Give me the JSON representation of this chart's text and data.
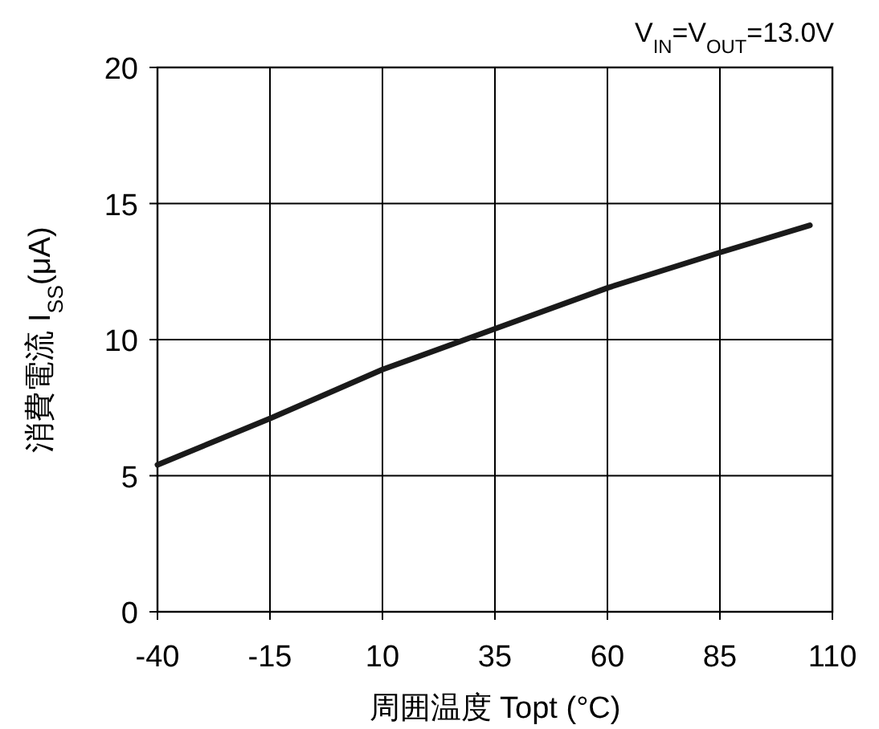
{
  "chart_data": {
    "type": "line",
    "xlabel": "周囲温度 Topt (°C)",
    "ylabel": "消費電流 I$_{SS}$(μA)",
    "annotations": [
      "V$_{IN}$=V$_{OUT}$=13.0V"
    ],
    "x": [
      -40,
      -15,
      10,
      35,
      60,
      85,
      105
    ],
    "series": [
      {
        "color": "#1a1a1a",
        "values": [
          5.4,
          7.1,
          8.9,
          10.4,
          11.9,
          13.2,
          14.2
        ]
      }
    ],
    "xlim": [
      -40,
      110
    ],
    "xticks": [
      -40,
      -15,
      10,
      35,
      60,
      85,
      110
    ],
    "ylim": [
      0,
      20
    ],
    "yticks": [
      0,
      5,
      10,
      15,
      20
    ],
    "grid": true
  }
}
